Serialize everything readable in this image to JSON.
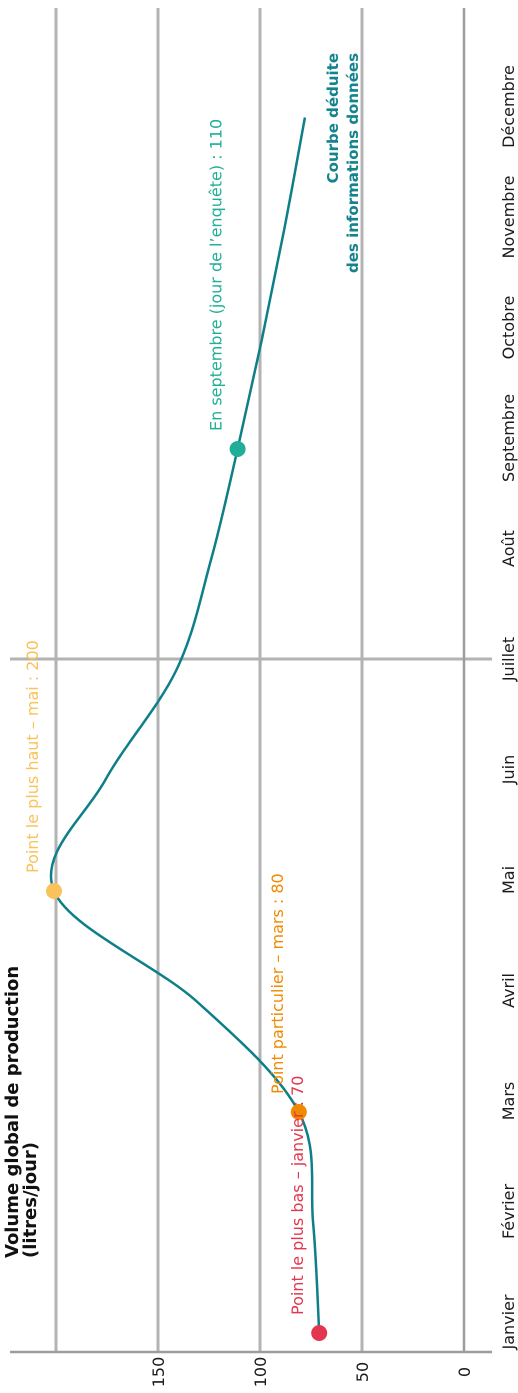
{
  "chart_data": {
    "type": "line",
    "title": "Volume global de production",
    "title_unit": "(litres/jour)",
    "x": [
      "Janvier",
      "Février",
      "Mars",
      "Avril",
      "Mai",
      "Juin",
      "Juillet",
      "Août",
      "Septembre",
      "Octobre",
      "Novembre",
      "Décembre"
    ],
    "yticks": [
      0,
      50,
      100,
      150
    ],
    "ylim": [
      0,
      200
    ],
    "grid": true,
    "series": [
      {
        "values": [
          70,
          73,
          80,
          130,
          200,
          175,
          140,
          123,
          110,
          98,
          87,
          77
        ],
        "color": "#0e7f88"
      }
    ],
    "annotations": [
      {
        "x": "Janvier",
        "y": 70,
        "text": "Point le plus bas – janvier : 70",
        "color": "#e2374e"
      },
      {
        "x": "Mars",
        "y": 80,
        "text": "Point particulier – mars : 80",
        "color": "#f08a00"
      },
      {
        "x": "Mai",
        "y": 200,
        "text": "Point le plus haut – mai : 200",
        "color": "#f9c25a"
      },
      {
        "x": "Septembre",
        "y": 110,
        "text": "En septembre (jour de l’enquête) : 110",
        "color": "#1fae97"
      }
    ],
    "curve_label": [
      "Courbe déduite",
      "des informations données"
    ],
    "curve_label_color": "#13838d"
  }
}
